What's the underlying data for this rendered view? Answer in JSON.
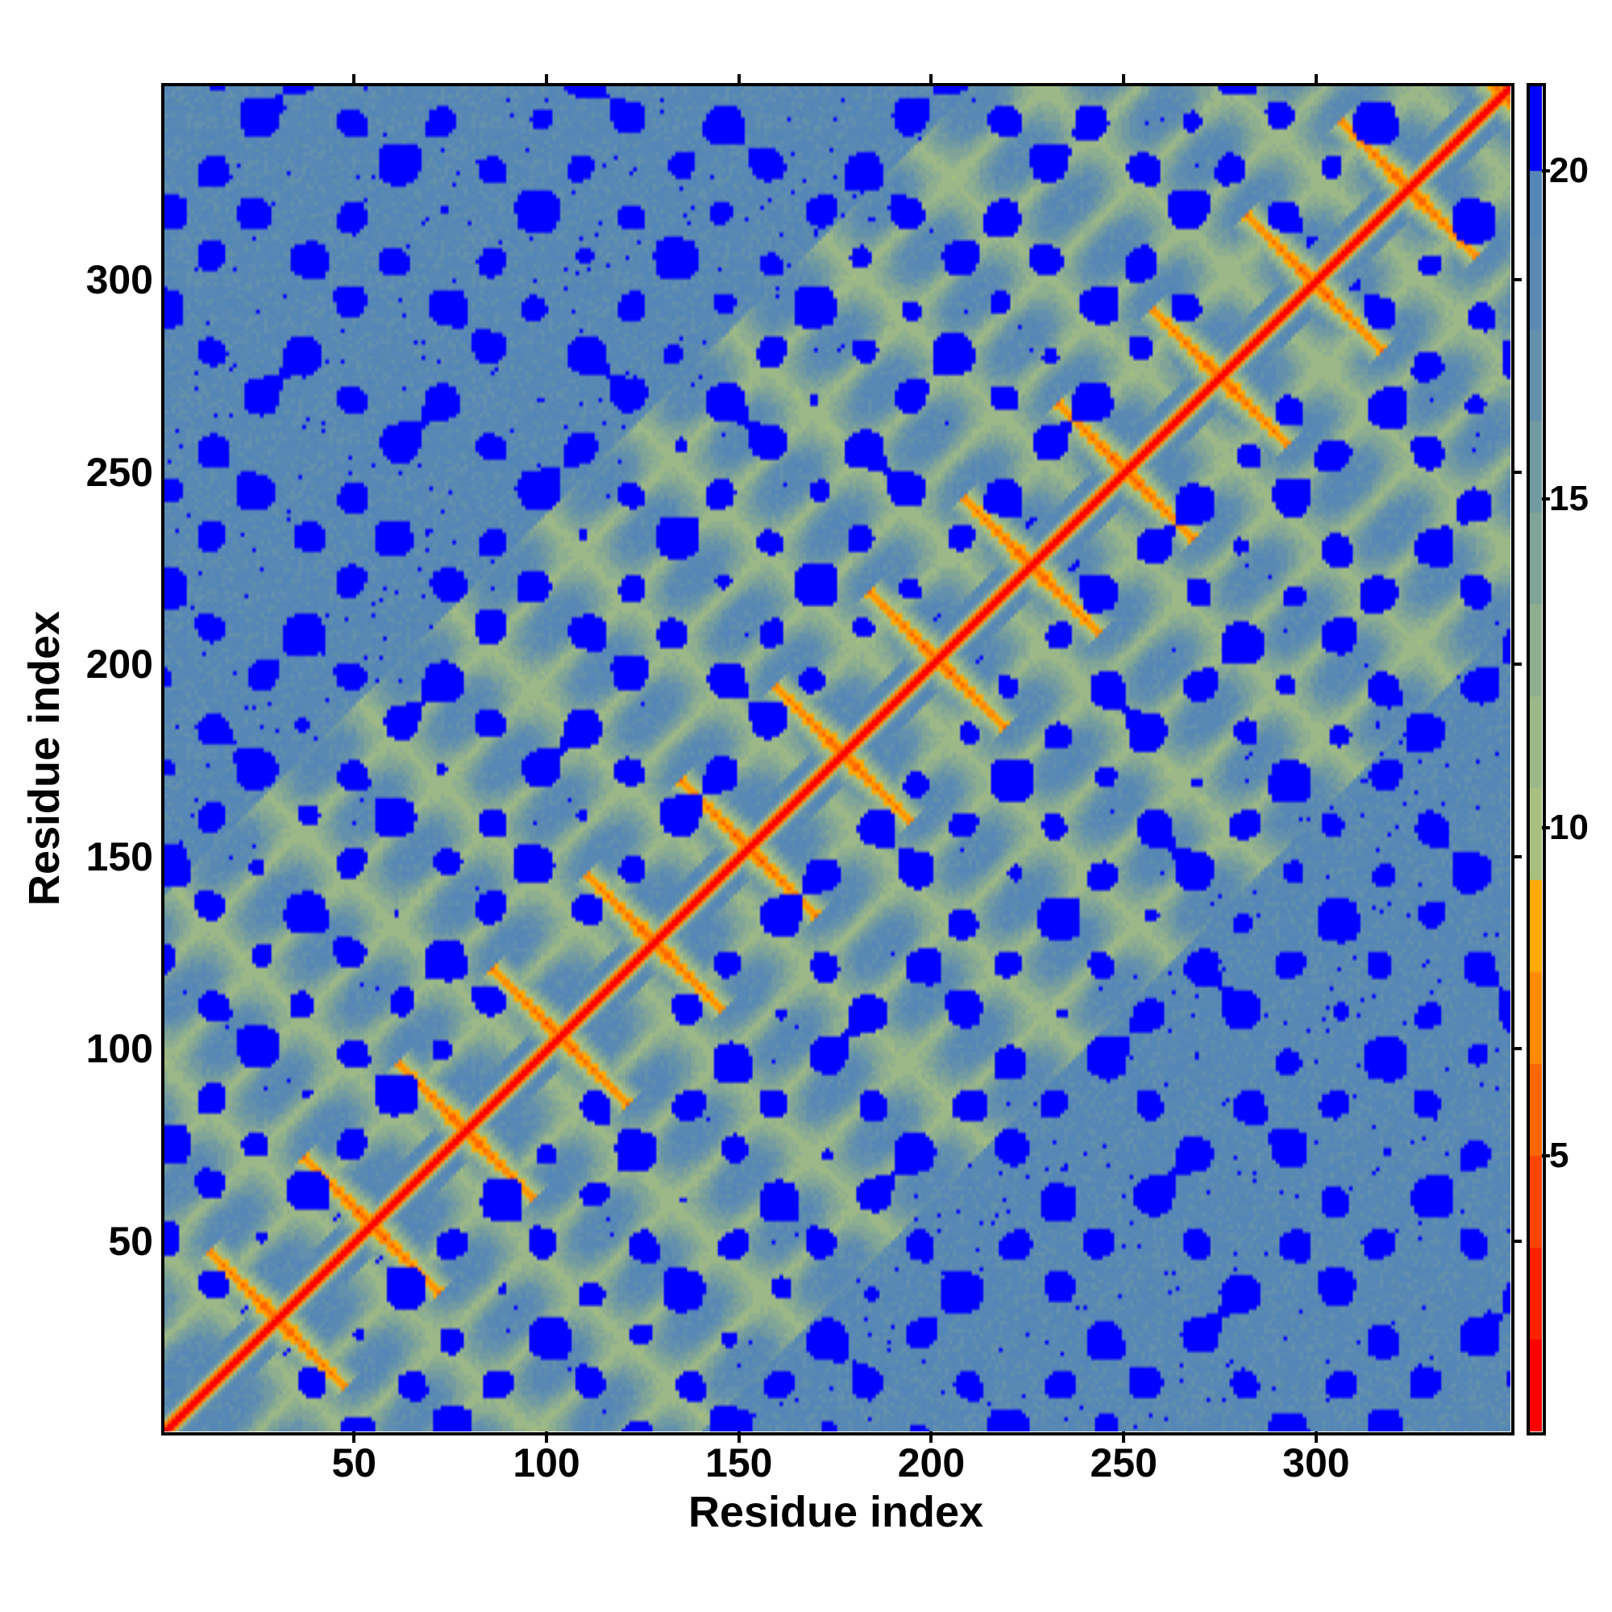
{
  "chart_data": {
    "type": "heatmap",
    "title": "",
    "xlabel": "Residue index",
    "ylabel": "Residue index",
    "n_residues": 350,
    "xlim": [
      0.5,
      350.5
    ],
    "ylim": [
      0.5,
      350.5
    ],
    "x_ticks": [
      50,
      100,
      150,
      200,
      250,
      300
    ],
    "y_ticks": [
      50,
      100,
      150,
      200,
      250,
      300
    ],
    "colorbar": {
      "range": [
        0.8,
        21.3
      ],
      "ticks": [
        5,
        10,
        15,
        20
      ],
      "levels": [
        {
          "max": 2.2,
          "color": "#ff0000"
        },
        {
          "max": 3.6,
          "color": "#ff2200"
        },
        {
          "max": 5.0,
          "color": "#ff4400"
        },
        {
          "max": 6.4,
          "color": "#ff6600"
        },
        {
          "max": 7.8,
          "color": "#ff8c00"
        },
        {
          "max": 9.2,
          "color": "#ffaa00"
        },
        {
          "max": 10.6,
          "color": "#a8bf80"
        },
        {
          "max": 12.0,
          "color": "#9cb888"
        },
        {
          "max": 13.4,
          "color": "#8eae90"
        },
        {
          "max": 14.8,
          "color": "#80a498"
        },
        {
          "max": 16.2,
          "color": "#719aa2"
        },
        {
          "max": 17.6,
          "color": "#6490ac"
        },
        {
          "max": 19.0,
          "color": "#5a8ab4"
        },
        {
          "max": 20.0,
          "color": "#5586b8"
        },
        {
          "max": 99,
          "color": "#0000ff"
        }
      ]
    },
    "features": "symmetric distance map; red main diagonal; antiparallel hairpin crossings roughly every 24 residues along diagonal; blue (>20) blobs in off-diagonal regions"
  }
}
